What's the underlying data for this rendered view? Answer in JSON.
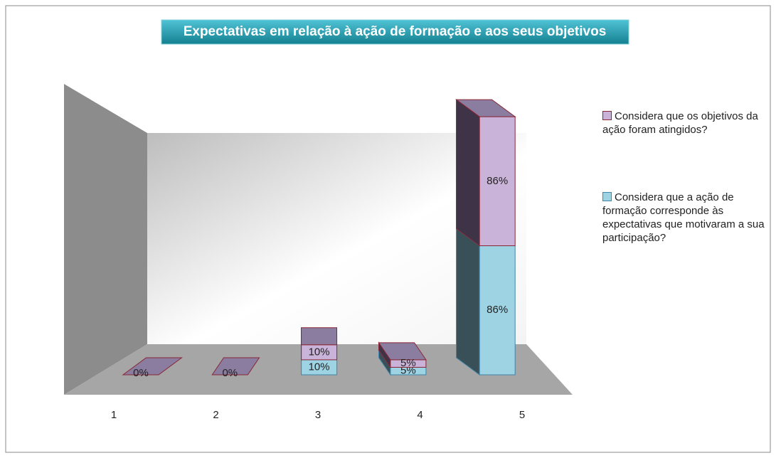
{
  "chart_data": {
    "type": "bar3d-stacked",
    "title": "Expectativas em relação à ação de formação e aos seus objetivos",
    "categories": [
      "1",
      "2",
      "3",
      "4",
      "5"
    ],
    "series": [
      {
        "name": "Considera que os objetivos da ação foram atingidos?",
        "color": "#c9b3d9",
        "values": [
          0,
          0,
          10,
          5,
          86
        ],
        "value_labels": [
          "0%",
          "0%",
          "10%",
          "5%",
          "86%"
        ]
      },
      {
        "name": "Considera que a ação de formação corresponde às expectativas que motivaram a sua participação?",
        "color": "#9ed3e3",
        "values": [
          0,
          0,
          10,
          5,
          86
        ],
        "value_labels": [
          "0%",
          "0%",
          "10%",
          "5%",
          "86%"
        ]
      }
    ],
    "legend": "right"
  }
}
